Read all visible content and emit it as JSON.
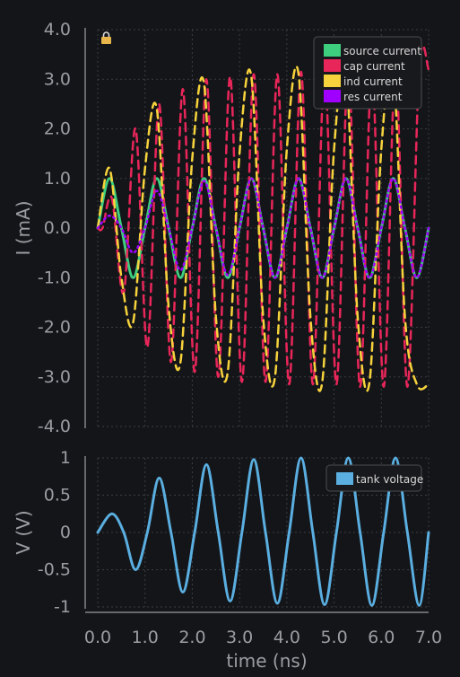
{
  "colors": {
    "background": "#141518",
    "grid": "#3a3d43",
    "axis": "#b9bbbf",
    "source": "#3ecf7e",
    "cap": "#e8265a",
    "ind": "#f6d33c",
    "res": "#a000ff",
    "tank": "#5aaee0",
    "legend_bg": "#18191c",
    "legend_border": "#4a4d52"
  },
  "toolbar": {
    "lock_icon": "lock-icon"
  },
  "chart_data": [
    {
      "type": "line",
      "ylabel": "I (mA)",
      "xlabel": "",
      "xlim": [
        0,
        7.0
      ],
      "ylim": [
        -4.0,
        4.0
      ],
      "grid": true,
      "legend_placement": "top-right",
      "yticks": [
        "4.0",
        "3.0",
        "2.0",
        "1.0",
        "0.0",
        "-1.0",
        "-2.0",
        "-3.0",
        "-4.0"
      ],
      "ytick_values": [
        4,
        3,
        2,
        1,
        0,
        -1,
        -2,
        -3,
        -4
      ],
      "series": [
        {
          "name": "source current",
          "style": "solid",
          "color_key": "source",
          "x": [
            0.0,
            0.25,
            0.5,
            0.75,
            1.0,
            1.25,
            1.5,
            1.75,
            2.0,
            2.25,
            2.5,
            2.75,
            3.0,
            3.25,
            3.5,
            3.75,
            4.0,
            4.25,
            4.5,
            4.75,
            5.0,
            5.25,
            5.5,
            5.75,
            6.0,
            6.25,
            6.5,
            6.75,
            7.0
          ],
          "values": [
            0.0,
            1.0,
            0.0,
            -1.0,
            0.0,
            1.0,
            0.0,
            -1.0,
            0.0,
            1.0,
            0.0,
            -1.0,
            0.0,
            1.0,
            0.0,
            -1.0,
            0.0,
            1.0,
            0.0,
            -1.0,
            0.0,
            1.0,
            0.0,
            -1.0,
            0.0,
            1.0,
            0.0,
            -1.0,
            0.0
          ]
        },
        {
          "name": "cap current",
          "style": "dashed",
          "color_key": "cap",
          "x": [
            0.0,
            0.1,
            0.3,
            0.55,
            0.8,
            1.05,
            1.3,
            1.55,
            1.8,
            2.05,
            2.3,
            2.55,
            2.8,
            3.05,
            3.3,
            3.55,
            3.8,
            4.05,
            4.3,
            4.55,
            4.8,
            5.05,
            5.3,
            5.55,
            5.8,
            6.05,
            6.3,
            6.55,
            6.8,
            7.0
          ],
          "values": [
            0.0,
            0.0,
            0.6,
            -1.3,
            2.0,
            -2.4,
            2.5,
            -2.7,
            2.8,
            -2.9,
            3.0,
            -3.0,
            3.05,
            -3.1,
            3.1,
            -3.1,
            3.1,
            -3.15,
            3.15,
            -3.15,
            3.15,
            -3.15,
            3.2,
            -3.2,
            3.2,
            -3.2,
            3.2,
            -3.2,
            3.2,
            3.2
          ]
        },
        {
          "name": "ind current",
          "style": "dashed",
          "color_key": "ind",
          "x": [
            0.0,
            0.25,
            0.5,
            0.75,
            1.0,
            1.25,
            1.5,
            1.75,
            2.0,
            2.25,
            2.5,
            2.75,
            3.0,
            3.25,
            3.5,
            3.75,
            4.0,
            4.25,
            4.5,
            4.75,
            5.0,
            5.25,
            5.5,
            5.75,
            6.0,
            6.25,
            6.5,
            6.75,
            7.0
          ],
          "values": [
            0.0,
            1.2,
            -1.0,
            -1.9,
            1.2,
            2.4,
            -1.6,
            -2.7,
            1.4,
            2.9,
            -1.8,
            -2.9,
            1.5,
            3.05,
            -1.8,
            -3.0,
            1.6,
            3.1,
            -1.8,
            -3.1,
            1.6,
            3.15,
            -1.8,
            -3.1,
            1.6,
            3.2,
            -1.8,
            -3.15,
            -3.15
          ]
        },
        {
          "name": "res current",
          "style": "dotted",
          "color_key": "res",
          "x": [
            0.0,
            0.25,
            0.5,
            0.75,
            1.0,
            1.25,
            1.5,
            1.75,
            2.0,
            2.25,
            2.5,
            2.75,
            3.0,
            3.25,
            3.5,
            3.75,
            4.0,
            4.25,
            4.5,
            4.75,
            5.0,
            5.25,
            5.5,
            5.75,
            6.0,
            6.25,
            6.5,
            6.75,
            7.0
          ],
          "values": [
            0.0,
            0.25,
            0.0,
            -0.5,
            0.0,
            0.75,
            0.0,
            -0.85,
            0.0,
            0.95,
            0.0,
            -0.95,
            0.0,
            1.0,
            0.0,
            -1.0,
            0.0,
            1.0,
            0.0,
            -1.0,
            0.0,
            1.0,
            0.0,
            -1.0,
            0.0,
            1.0,
            0.0,
            -1.0,
            0.0
          ]
        }
      ]
    },
    {
      "type": "line",
      "ylabel": "V (V)",
      "xlabel": "time (ns)",
      "xlim": [
        0,
        7.0
      ],
      "ylim": [
        -1,
        1
      ],
      "grid": true,
      "legend_placement": "top-right",
      "yticks": [
        "1",
        "0.5",
        "0",
        "-0.5",
        "-1"
      ],
      "ytick_values": [
        1,
        0.5,
        0,
        -0.5,
        -1
      ],
      "xticks": [
        "0.0",
        "1.0",
        "2.0",
        "3.0",
        "4.0",
        "5.0",
        "6.0",
        "7.0"
      ],
      "xtick_values": [
        0,
        1,
        2,
        3,
        4,
        5,
        6,
        7
      ],
      "series": [
        {
          "name": "tank voltage",
          "style": "solid",
          "color_key": "tank",
          "x": [
            0.0,
            0.3,
            0.55,
            0.8,
            1.05,
            1.3,
            1.55,
            1.8,
            2.05,
            2.3,
            2.55,
            2.8,
            3.05,
            3.3,
            3.55,
            3.8,
            4.05,
            4.3,
            4.55,
            4.8,
            5.05,
            5.3,
            5.55,
            5.8,
            6.05,
            6.3,
            6.55,
            6.8,
            7.0
          ],
          "values": [
            0.0,
            0.25,
            0.0,
            -0.5,
            0.0,
            0.73,
            0.0,
            -0.8,
            0.0,
            0.91,
            0.0,
            -0.92,
            0.0,
            0.98,
            0.0,
            -0.95,
            0.0,
            1.0,
            0.0,
            -0.97,
            0.0,
            1.0,
            0.0,
            -0.98,
            0.0,
            1.0,
            0.0,
            -0.98,
            0.0
          ]
        }
      ]
    }
  ]
}
